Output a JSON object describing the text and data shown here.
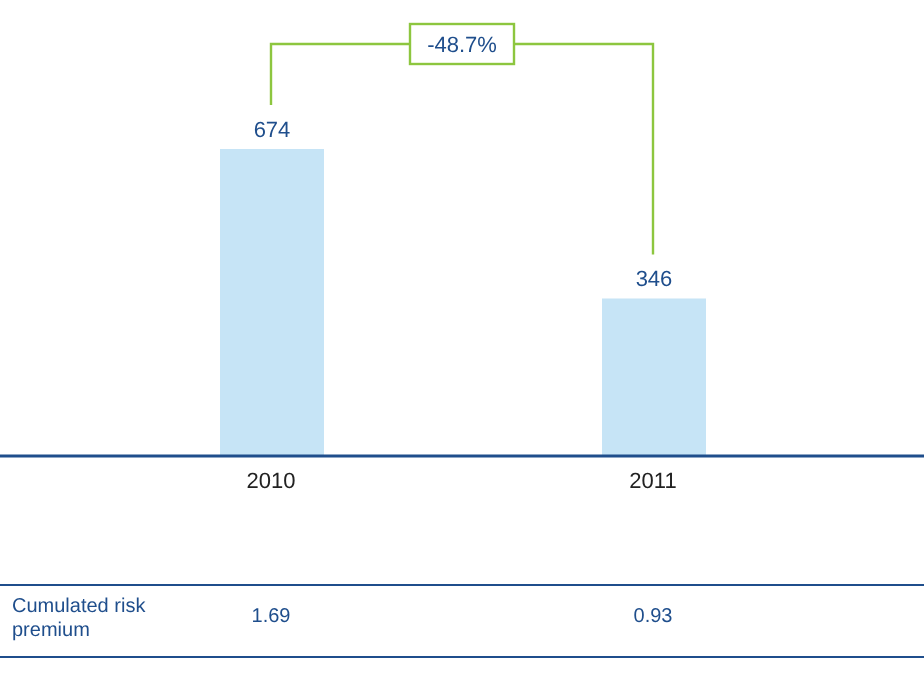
{
  "chart_data": {
    "type": "bar",
    "categories": [
      "2010",
      "2011"
    ],
    "values": [
      674,
      346
    ],
    "color": "#c6e4f6",
    "data_labels": true,
    "annotations": [
      "-48.7%",
      "Cumulated risk premium",
      "1.69",
      "0.93"
    ]
  }
}
